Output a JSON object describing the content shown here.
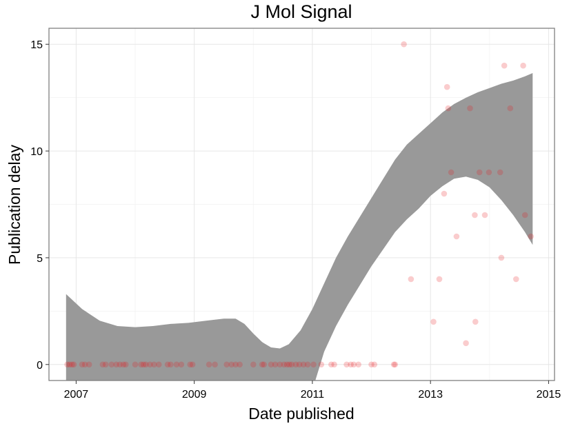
{
  "chart_data": {
    "type": "scatter",
    "title": "J Mol Signal",
    "xlabel": "Date published",
    "ylabel": "Publication delay",
    "x_ticks": [
      2007,
      2009,
      2011,
      2013,
      2015
    ],
    "y_ticks": [
      0,
      5,
      10,
      15
    ],
    "xlim": [
      2006.54,
      2015.1
    ],
    "ylim": [
      -0.75,
      15.75
    ],
    "grid": true,
    "legend": "none",
    "point_color": "#e8191c",
    "band_color": "#999999",
    "points": [
      {
        "x": 2006.85,
        "y": 0
      },
      {
        "x": 2006.89,
        "y": 0
      },
      {
        "x": 2006.93,
        "y": 0
      },
      {
        "x": 2006.96,
        "y": 0
      },
      {
        "x": 2007.1,
        "y": 0
      },
      {
        "x": 2007.15,
        "y": 0
      },
      {
        "x": 2007.22,
        "y": 0
      },
      {
        "x": 2007.45,
        "y": 0
      },
      {
        "x": 2007.5,
        "y": 0
      },
      {
        "x": 2007.6,
        "y": 0
      },
      {
        "x": 2007.68,
        "y": 0
      },
      {
        "x": 2007.74,
        "y": 0
      },
      {
        "x": 2007.8,
        "y": 0
      },
      {
        "x": 2007.84,
        "y": 0
      },
      {
        "x": 2008.0,
        "y": 0
      },
      {
        "x": 2008.1,
        "y": 0
      },
      {
        "x": 2008.14,
        "y": 0
      },
      {
        "x": 2008.18,
        "y": 0
      },
      {
        "x": 2008.25,
        "y": 0
      },
      {
        "x": 2008.32,
        "y": 0
      },
      {
        "x": 2008.4,
        "y": 0
      },
      {
        "x": 2008.55,
        "y": 0
      },
      {
        "x": 2008.6,
        "y": 0
      },
      {
        "x": 2008.7,
        "y": 0
      },
      {
        "x": 2008.78,
        "y": 0
      },
      {
        "x": 2008.93,
        "y": 0
      },
      {
        "x": 2008.97,
        "y": 0
      },
      {
        "x": 2009.25,
        "y": 0
      },
      {
        "x": 2009.35,
        "y": 0
      },
      {
        "x": 2009.55,
        "y": 0
      },
      {
        "x": 2009.63,
        "y": 0
      },
      {
        "x": 2009.7,
        "y": 0
      },
      {
        "x": 2009.77,
        "y": 0
      },
      {
        "x": 2010.0,
        "y": 0
      },
      {
        "x": 2010.15,
        "y": 0
      },
      {
        "x": 2010.18,
        "y": 0
      },
      {
        "x": 2010.3,
        "y": 0
      },
      {
        "x": 2010.37,
        "y": 0
      },
      {
        "x": 2010.45,
        "y": 0
      },
      {
        "x": 2010.52,
        "y": 0
      },
      {
        "x": 2010.57,
        "y": 0
      },
      {
        "x": 2010.61,
        "y": 0
      },
      {
        "x": 2010.65,
        "y": 0
      },
      {
        "x": 2010.72,
        "y": 0
      },
      {
        "x": 2010.78,
        "y": 0
      },
      {
        "x": 2010.85,
        "y": 0
      },
      {
        "x": 2010.92,
        "y": 0
      },
      {
        "x": 2011.02,
        "y": 0
      },
      {
        "x": 2011.15,
        "y": 0
      },
      {
        "x": 2011.32,
        "y": 0
      },
      {
        "x": 2011.37,
        "y": 0
      },
      {
        "x": 2011.58,
        "y": 0
      },
      {
        "x": 2011.65,
        "y": 0
      },
      {
        "x": 2011.7,
        "y": 0
      },
      {
        "x": 2011.78,
        "y": 0
      },
      {
        "x": 2012.0,
        "y": 0
      },
      {
        "x": 2012.05,
        "y": 0
      },
      {
        "x": 2012.38,
        "y": 0
      },
      {
        "x": 2012.4,
        "y": 0
      },
      {
        "x": 2012.55,
        "y": 15
      },
      {
        "x": 2012.67,
        "y": 4
      },
      {
        "x": 2013.05,
        "y": 2
      },
      {
        "x": 2013.15,
        "y": 4
      },
      {
        "x": 2013.23,
        "y": 8
      },
      {
        "x": 2013.28,
        "y": 13
      },
      {
        "x": 2013.3,
        "y": 12
      },
      {
        "x": 2013.35,
        "y": 9
      },
      {
        "x": 2013.44,
        "y": 6
      },
      {
        "x": 2013.6,
        "y": 1
      },
      {
        "x": 2013.67,
        "y": 12
      },
      {
        "x": 2013.75,
        "y": 7
      },
      {
        "x": 2013.76,
        "y": 2
      },
      {
        "x": 2013.83,
        "y": 9
      },
      {
        "x": 2013.92,
        "y": 7
      },
      {
        "x": 2013.99,
        "y": 9
      },
      {
        "x": 2014.18,
        "y": 9
      },
      {
        "x": 2014.2,
        "y": 5
      },
      {
        "x": 2014.25,
        "y": 14
      },
      {
        "x": 2014.35,
        "y": 12
      },
      {
        "x": 2014.45,
        "y": 4
      },
      {
        "x": 2014.57,
        "y": 14
      },
      {
        "x": 2014.6,
        "y": 7
      },
      {
        "x": 2014.7,
        "y": 6
      }
    ],
    "band_upper": [
      {
        "x": 2006.83,
        "y": 3.3
      },
      {
        "x": 2007.1,
        "y": 2.6
      },
      {
        "x": 2007.4,
        "y": 2.05
      },
      {
        "x": 2007.7,
        "y": 1.8
      },
      {
        "x": 2008.0,
        "y": 1.75
      },
      {
        "x": 2008.3,
        "y": 1.8
      },
      {
        "x": 2008.6,
        "y": 1.9
      },
      {
        "x": 2008.9,
        "y": 1.95
      },
      {
        "x": 2009.2,
        "y": 2.05
      },
      {
        "x": 2009.5,
        "y": 2.15
      },
      {
        "x": 2009.7,
        "y": 2.15
      },
      {
        "x": 2009.85,
        "y": 1.9
      },
      {
        "x": 2010.0,
        "y": 1.45
      },
      {
        "x": 2010.15,
        "y": 1.05
      },
      {
        "x": 2010.3,
        "y": 0.8
      },
      {
        "x": 2010.45,
        "y": 0.75
      },
      {
        "x": 2010.6,
        "y": 0.95
      },
      {
        "x": 2010.8,
        "y": 1.6
      },
      {
        "x": 2011.0,
        "y": 2.6
      },
      {
        "x": 2011.2,
        "y": 3.8
      },
      {
        "x": 2011.4,
        "y": 5.0
      },
      {
        "x": 2011.6,
        "y": 6.0
      },
      {
        "x": 2011.8,
        "y": 6.9
      },
      {
        "x": 2012.0,
        "y": 7.8
      },
      {
        "x": 2012.2,
        "y": 8.7
      },
      {
        "x": 2012.4,
        "y": 9.6
      },
      {
        "x": 2012.6,
        "y": 10.3
      },
      {
        "x": 2012.8,
        "y": 10.8
      },
      {
        "x": 2013.0,
        "y": 11.3
      },
      {
        "x": 2013.2,
        "y": 11.8
      },
      {
        "x": 2013.4,
        "y": 12.2
      },
      {
        "x": 2013.6,
        "y": 12.5
      },
      {
        "x": 2013.8,
        "y": 12.75
      },
      {
        "x": 2014.0,
        "y": 12.95
      },
      {
        "x": 2014.2,
        "y": 13.15
      },
      {
        "x": 2014.4,
        "y": 13.3
      },
      {
        "x": 2014.6,
        "y": 13.5
      },
      {
        "x": 2014.73,
        "y": 13.65
      }
    ],
    "band_lower": [
      {
        "x": 2006.83,
        "y": -0.75
      },
      {
        "x": 2011.05,
        "y": -0.75
      },
      {
        "x": 2011.2,
        "y": 0.6
      },
      {
        "x": 2011.4,
        "y": 1.8
      },
      {
        "x": 2011.6,
        "y": 2.8
      },
      {
        "x": 2011.8,
        "y": 3.7
      },
      {
        "x": 2012.0,
        "y": 4.6
      },
      {
        "x": 2012.2,
        "y": 5.4
      },
      {
        "x": 2012.4,
        "y": 6.2
      },
      {
        "x": 2012.6,
        "y": 6.8
      },
      {
        "x": 2012.8,
        "y": 7.3
      },
      {
        "x": 2013.0,
        "y": 7.9
      },
      {
        "x": 2013.2,
        "y": 8.35
      },
      {
        "x": 2013.4,
        "y": 8.7
      },
      {
        "x": 2013.6,
        "y": 8.8
      },
      {
        "x": 2013.8,
        "y": 8.65
      },
      {
        "x": 2014.0,
        "y": 8.3
      },
      {
        "x": 2014.2,
        "y": 7.7
      },
      {
        "x": 2014.4,
        "y": 7.0
      },
      {
        "x": 2014.6,
        "y": 6.2
      },
      {
        "x": 2014.73,
        "y": 5.6
      }
    ]
  }
}
